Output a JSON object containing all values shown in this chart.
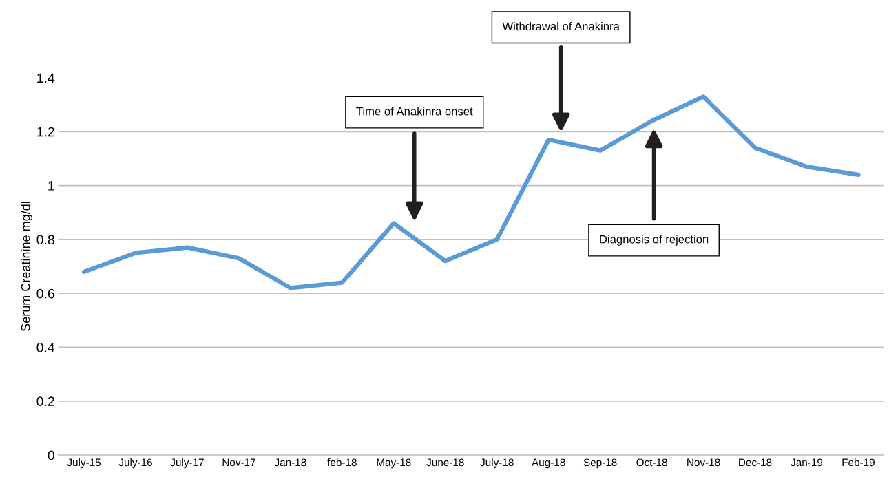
{
  "chart_data": {
    "type": "line",
    "ylabel": "Serum Creatinine mg/dl",
    "categories": [
      "July-15",
      "July-16",
      "July-17",
      "Nov-17",
      "Jan-18",
      "feb-18",
      "May-18",
      "June-18",
      "July-18",
      "Aug-18",
      "Sep-18",
      "Oct-18",
      "Nov-18",
      "Dec-18",
      "Jan-19",
      "Feb-19"
    ],
    "series": [
      {
        "color": "#5b9bd5",
        "values": [
          0.68,
          0.75,
          0.77,
          0.73,
          0.62,
          0.64,
          0.86,
          0.72,
          0.8,
          1.17,
          1.13,
          1.24,
          1.33,
          1.14,
          1.07,
          1.04
        ]
      }
    ],
    "ylim": [
      0,
      1.4
    ],
    "yticks": [
      {
        "value": 0,
        "label": "0"
      },
      0.2,
      0.4,
      0.6,
      0.8,
      {
        "value": 1,
        "label": "1"
      },
      1.2,
      1.4
    ],
    "grid": "y",
    "marker": "none",
    "line_style": "solid",
    "annotations": [
      "Time of Anakinra onset",
      "Withdrawal of Anakinra",
      "Diagnosis of rejection"
    ]
  }
}
